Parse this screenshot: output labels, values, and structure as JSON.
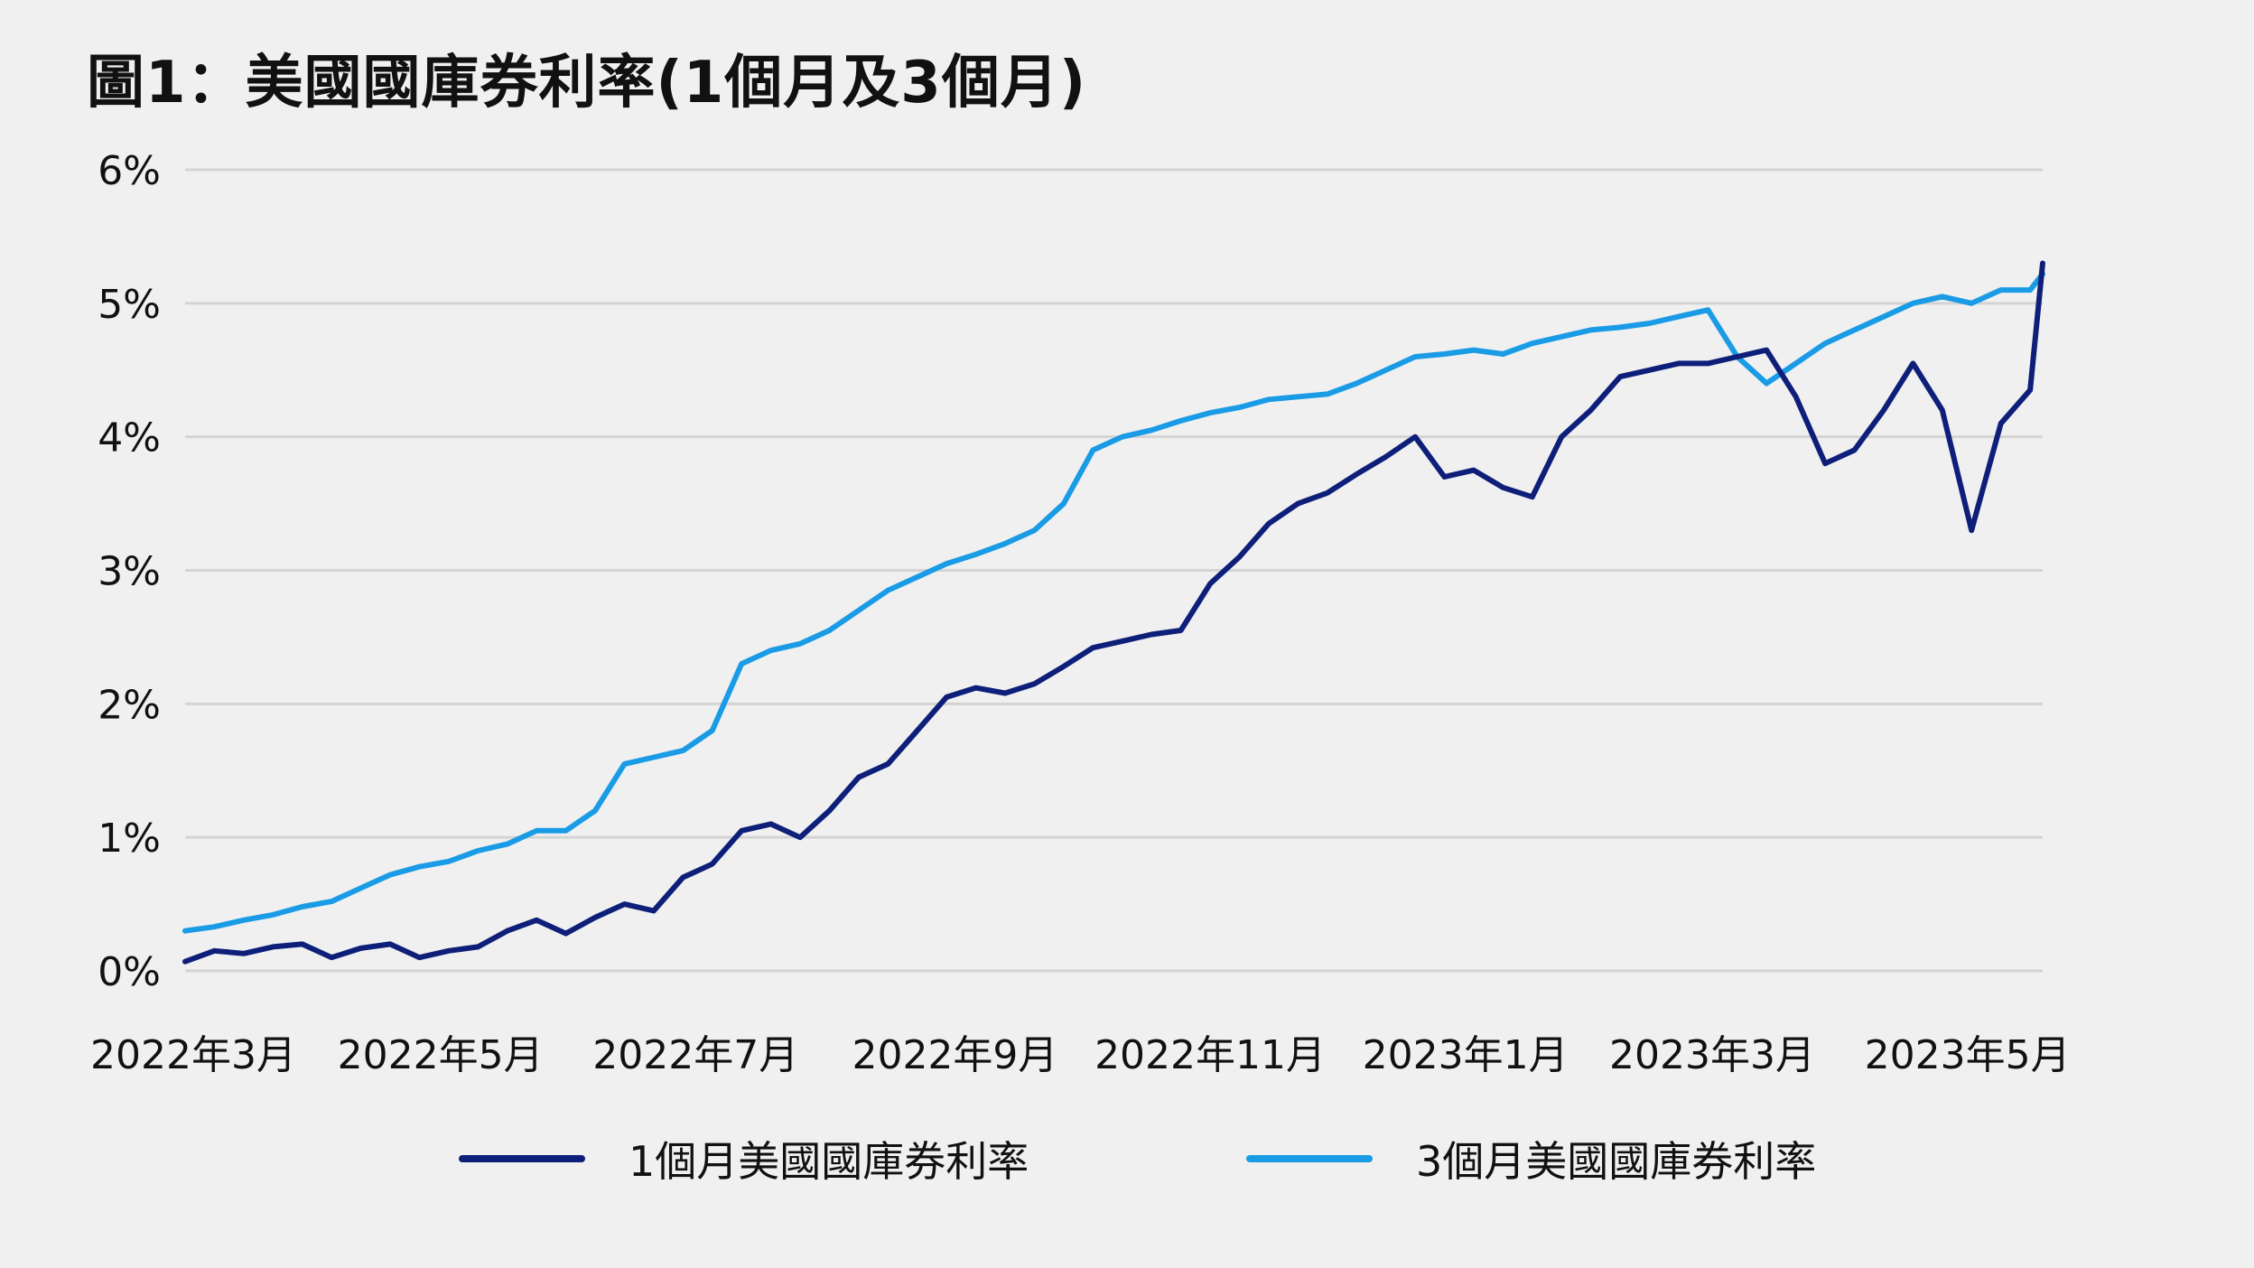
{
  "title": "圖1：美國國庫券利率(1個月及3個月)",
  "colors": {
    "background": "#f0f0f0",
    "grid": "#d4d4d4",
    "one_month": "#0e1f7a",
    "three_month": "#1a9be6"
  },
  "chart_data": {
    "type": "line",
    "title": "圖1：美國國庫券利率(1個月及3個月)",
    "xlabel": "",
    "ylabel": "",
    "ylim": [
      0,
      6
    ],
    "yticks": [
      "0%",
      "1%",
      "2%",
      "3%",
      "4%",
      "5%",
      "6%"
    ],
    "xticks": [
      "2022年3月",
      "2022年5月",
      "2022年7月",
      "2022年9月",
      "2022年11月",
      "2023年1月",
      "2023年3月",
      "2023年5月"
    ],
    "grid": true,
    "legend_position": "bottom",
    "x": [
      "2022-03-01",
      "2022-03-08",
      "2022-03-15",
      "2022-03-22",
      "2022-03-29",
      "2022-04-05",
      "2022-04-12",
      "2022-04-19",
      "2022-04-26",
      "2022-05-03",
      "2022-05-10",
      "2022-05-17",
      "2022-05-24",
      "2022-05-31",
      "2022-06-07",
      "2022-06-14",
      "2022-06-21",
      "2022-06-28",
      "2022-07-05",
      "2022-07-12",
      "2022-07-19",
      "2022-07-26",
      "2022-08-02",
      "2022-08-09",
      "2022-08-16",
      "2022-08-23",
      "2022-08-30",
      "2022-09-06",
      "2022-09-13",
      "2022-09-20",
      "2022-09-27",
      "2022-10-04",
      "2022-10-11",
      "2022-10-18",
      "2022-10-25",
      "2022-11-01",
      "2022-11-08",
      "2022-11-15",
      "2022-11-22",
      "2022-11-29",
      "2022-12-06",
      "2022-12-13",
      "2022-12-20",
      "2022-12-27",
      "2023-01-03",
      "2023-01-10",
      "2023-01-17",
      "2023-01-24",
      "2023-01-31",
      "2023-02-07",
      "2023-02-14",
      "2023-02-21",
      "2023-02-28",
      "2023-03-07",
      "2023-03-14",
      "2023-03-21",
      "2023-03-28",
      "2023-04-04",
      "2023-04-11",
      "2023-04-18",
      "2023-04-25",
      "2023-05-02",
      "2023-05-09",
      "2023-05-16",
      "2023-05-19"
    ],
    "series": [
      {
        "name": "1個月美國國庫券利率",
        "values": [
          0.07,
          0.15,
          0.13,
          0.18,
          0.2,
          0.1,
          0.17,
          0.2,
          0.1,
          0.15,
          0.18,
          0.3,
          0.38,
          0.28,
          0.4,
          0.5,
          0.45,
          0.7,
          0.8,
          1.05,
          1.1,
          1.0,
          1.2,
          1.45,
          1.55,
          1.8,
          2.05,
          2.12,
          2.08,
          2.15,
          2.28,
          2.42,
          2.47,
          2.52,
          2.55,
          2.9,
          3.1,
          3.35,
          3.5,
          3.58,
          3.72,
          3.85,
          4.0,
          3.7,
          3.75,
          3.62,
          3.55,
          4.0,
          4.2,
          4.45,
          4.5,
          4.55,
          4.55,
          4.6,
          4.65,
          4.3,
          3.8,
          3.9,
          4.2,
          4.55,
          4.2,
          3.3,
          4.1,
          4.35,
          5.3
        ]
      },
      {
        "name": "3個月美國國庫券利率",
        "values": [
          0.3,
          0.33,
          0.38,
          0.42,
          0.48,
          0.52,
          0.62,
          0.72,
          0.78,
          0.82,
          0.9,
          0.95,
          1.05,
          1.05,
          1.2,
          1.55,
          1.6,
          1.65,
          1.8,
          2.3,
          2.4,
          2.45,
          2.55,
          2.7,
          2.85,
          2.95,
          3.05,
          3.12,
          3.2,
          3.3,
          3.5,
          3.9,
          4.0,
          4.05,
          4.12,
          4.18,
          4.22,
          4.28,
          4.3,
          4.32,
          4.4,
          4.5,
          4.6,
          4.62,
          4.65,
          4.62,
          4.7,
          4.75,
          4.8,
          4.82,
          4.85,
          4.9,
          4.95,
          4.6,
          4.4,
          4.55,
          4.7,
          4.8,
          4.9,
          5.0,
          5.05,
          5.0,
          5.1,
          5.1,
          5.22
        ]
      }
    ]
  },
  "legend": {
    "items": [
      {
        "label": "1個月美國國庫券利率"
      },
      {
        "label": "3個月美國國庫券利率"
      }
    ]
  }
}
